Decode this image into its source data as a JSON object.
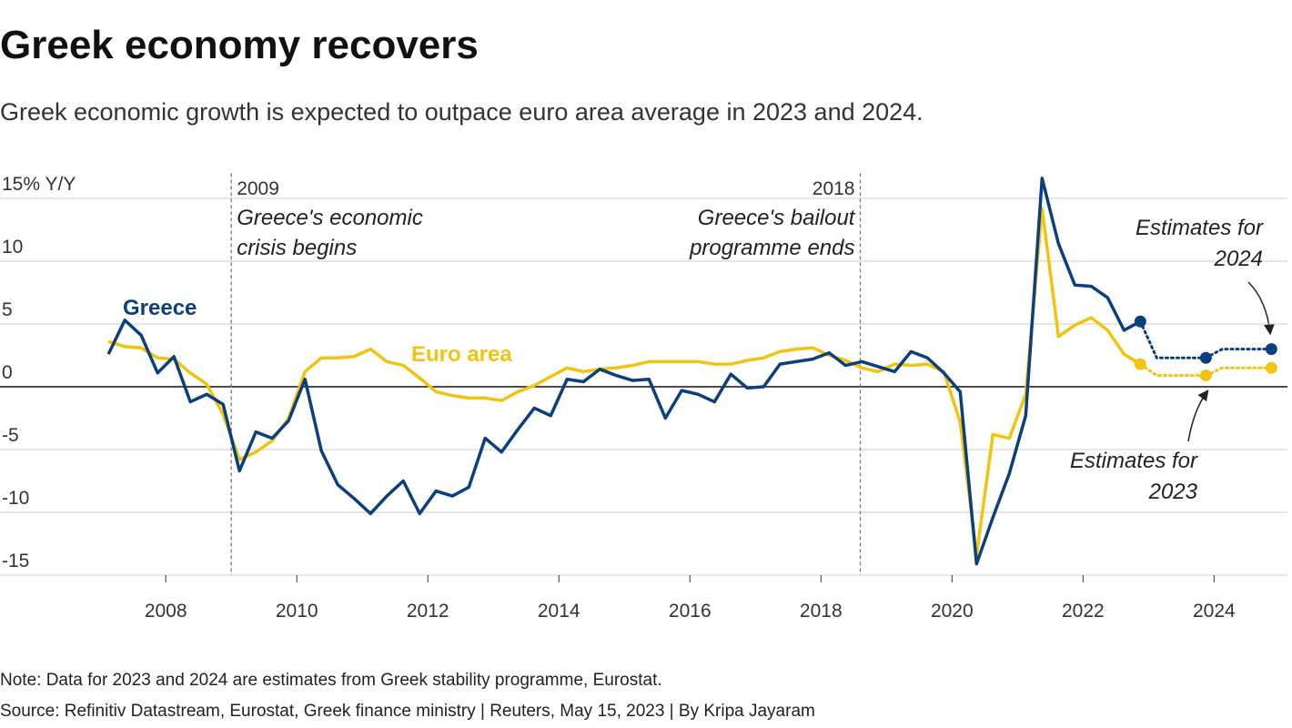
{
  "chart_data": {
    "type": "line",
    "title": "Greek economy recovers",
    "subtitle": "Greek economic growth is expected to outpace euro area average in 2023 and 2024.",
    "note": "Note: Data for 2023 and 2024 are estimates from Greek stability programme, Eurostat.",
    "source": "Source: Refinitiv Datastream, Eurostat, Greek finance ministry | Reuters, May 15, 2023 | By Kripa Jayaram",
    "x": [
      2007.125,
      2007.375,
      2007.625,
      2007.875,
      2008.125,
      2008.375,
      2008.625,
      2008.875,
      2009.125,
      2009.375,
      2009.625,
      2009.875,
      2010.125,
      2010.375,
      2010.625,
      2010.875,
      2011.125,
      2011.375,
      2011.625,
      2011.875,
      2012.125,
      2012.375,
      2012.625,
      2012.875,
      2013.125,
      2013.375,
      2013.625,
      2013.875,
      2014.125,
      2014.375,
      2014.625,
      2014.875,
      2015.125,
      2015.375,
      2015.625,
      2015.875,
      2016.125,
      2016.375,
      2016.625,
      2016.875,
      2017.125,
      2017.375,
      2017.625,
      2017.875,
      2018.125,
      2018.375,
      2018.625,
      2018.875,
      2019.125,
      2019.375,
      2019.625,
      2019.875,
      2020.125,
      2020.375,
      2020.625,
      2020.875,
      2021.125,
      2021.375,
      2021.625,
      2021.875,
      2022.125,
      2022.375,
      2022.625,
      2022.875
    ],
    "estimate_x": [
      2023.875,
      2024.875
    ],
    "series": [
      {
        "name": "Greece",
        "color": "#0c3f7d",
        "values": [
          2.6,
          5.3,
          4.1,
          1.1,
          2.4,
          -1.2,
          -0.6,
          -1.4,
          -6.7,
          -3.6,
          -4.1,
          -2.7,
          0.6,
          -5.1,
          -7.8,
          -8.9,
          -10.1,
          -8.7,
          -7.5,
          -10.1,
          -8.3,
          -8.7,
          -8.0,
          -4.1,
          -5.2,
          -3.4,
          -1.7,
          -2.3,
          0.6,
          0.4,
          1.4,
          0.9,
          0.5,
          0.6,
          -2.5,
          -0.3,
          -0.6,
          -1.2,
          1.0,
          -0.1,
          0.0,
          1.8,
          2.0,
          2.2,
          2.7,
          1.7,
          2.0,
          1.6,
          1.2,
          2.8,
          2.3,
          1.1,
          -0.4,
          -14.1,
          -10.4,
          -6.9,
          -2.3,
          16.6,
          11.4,
          8.1,
          8.0,
          7.1,
          4.5,
          5.2
        ],
        "estimates": [
          2.3,
          3.0
        ]
      },
      {
        "name": "Euro area",
        "color": "#f2c30f",
        "values": [
          3.6,
          3.2,
          3.1,
          2.3,
          2.2,
          1.1,
          0.2,
          -2.2,
          -5.8,
          -5.2,
          -4.3,
          -2.5,
          1.2,
          2.3,
          2.3,
          2.4,
          3.0,
          2.0,
          1.7,
          0.7,
          -0.4,
          -0.7,
          -0.9,
          -0.9,
          -1.1,
          -0.4,
          0.1,
          0.8,
          1.5,
          1.2,
          1.4,
          1.5,
          1.7,
          2.0,
          2.0,
          2.0,
          2.0,
          1.8,
          1.8,
          2.1,
          2.3,
          2.8,
          3.0,
          3.1,
          2.5,
          2.1,
          1.5,
          1.2,
          1.8,
          1.7,
          1.8,
          1.2,
          -2.8,
          -13.4,
          -3.8,
          -4.1,
          -0.6,
          14.2,
          4.0,
          4.9,
          5.5,
          4.5,
          2.6,
          1.8
        ],
        "estimates": [
          0.9,
          1.5
        ]
      }
    ],
    "events": [
      {
        "x": 2009.0,
        "label": "2009",
        "text": [
          "Greece's economic",
          "crisis begins"
        ]
      },
      {
        "x": 2018.6,
        "label": "2018",
        "text": [
          "Greece's bailout",
          "programme ends"
        ]
      }
    ],
    "estimate_notes": [
      {
        "text": [
          "Estimates for",
          "2024"
        ]
      },
      {
        "text": [
          "Estimates for",
          "2023"
        ]
      }
    ],
    "xlim": [
      2005.47,
      2025.12
    ],
    "xticks": [
      2008,
      2010,
      2012,
      2014,
      2016,
      2018,
      2020,
      2022,
      2024
    ],
    "ylim": [
      -15,
      17
    ],
    "yticks": [
      {
        "value": 15,
        "label": "15% Y/Y"
      },
      10,
      5,
      0,
      -5,
      -10,
      -15
    ],
    "grid": true
  }
}
